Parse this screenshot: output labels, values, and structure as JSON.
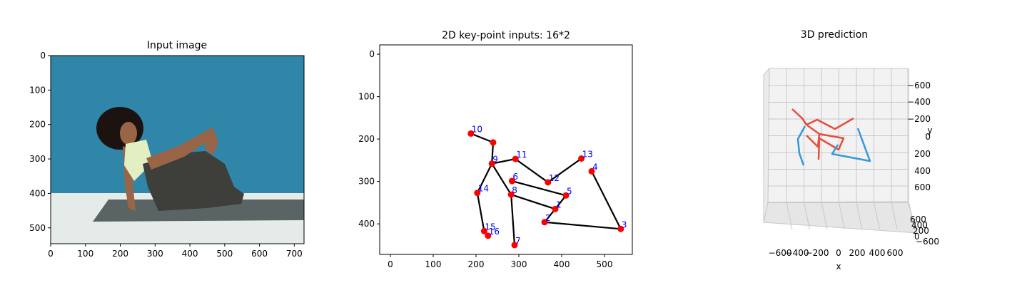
{
  "chart_data": [
    {
      "type": "image",
      "title": "Input image",
      "xlim": [
        0,
        728
      ],
      "ylim": [
        546,
        0
      ],
      "xticks": [
        0,
        100,
        200,
        300,
        400,
        500,
        600,
        700
      ],
      "yticks": [
        0,
        100,
        200,
        300,
        400,
        500
      ],
      "colors": {
        "wall": "#2f86a8",
        "floor": "#e4ebe8",
        "mat": "#5b6464",
        "leggings": "#3e3e3b",
        "top": "#e2efc2",
        "skin": "#9a6547",
        "hair": "#1c1310"
      }
    },
    {
      "type": "scatter",
      "title": "2D key-point inputs: 16*2",
      "xlim": [
        -25,
        565
      ],
      "ylim": [
        472,
        -22
      ],
      "xticks": [
        0,
        100,
        200,
        300,
        400,
        500
      ],
      "yticks": [
        0,
        100,
        200,
        300,
        400
      ],
      "point_color": "#ff0000",
      "bone_color": "#000000",
      "label_color": "#0000ff",
      "points": [
        {
          "label": "",
          "x": 240,
          "y": 208
        },
        {
          "label": "1",
          "x": 385,
          "y": 365
        },
        {
          "label": "2",
          "x": 360,
          "y": 396
        },
        {
          "label": "3",
          "x": 538,
          "y": 412
        },
        {
          "label": "4",
          "x": 470,
          "y": 276
        },
        {
          "label": "5",
          "x": 410,
          "y": 333
        },
        {
          "label": "6",
          "x": 284,
          "y": 299
        },
        {
          "label": "7",
          "x": 290,
          "y": 450
        },
        {
          "label": "8",
          "x": 282,
          "y": 331
        },
        {
          "label": "9",
          "x": 237,
          "y": 258
        },
        {
          "label": "10",
          "x": 188,
          "y": 187
        },
        {
          "label": "11",
          "x": 292,
          "y": 247
        },
        {
          "label": "12",
          "x": 368,
          "y": 302
        },
        {
          "label": "13",
          "x": 446,
          "y": 246
        },
        {
          "label": "14",
          "x": 203,
          "y": 327
        },
        {
          "label": "15",
          "x": 219,
          "y": 417
        },
        {
          "label": "16",
          "x": 228,
          "y": 428
        }
      ],
      "bones": [
        [
          10,
          0
        ],
        [
          0,
          9
        ],
        [
          9,
          11
        ],
        [
          11,
          12
        ],
        [
          12,
          13
        ],
        [
          9,
          8
        ],
        [
          9,
          14
        ],
        [
          14,
          15
        ],
        [
          15,
          16
        ],
        [
          8,
          7
        ],
        [
          8,
          1
        ],
        [
          1,
          2
        ],
        [
          2,
          3
        ],
        [
          3,
          4
        ],
        [
          6,
          5
        ],
        [
          5,
          1
        ]
      ]
    },
    {
      "type": "line3d",
      "title": "3D prediction",
      "xlabel": "x",
      "ylabel": "y",
      "x_ticklabels": [
        "−600",
        "−400",
        "−200",
        "0",
        "200",
        "400",
        "600"
      ],
      "y_ticklabels": [
        "−600",
        "−400",
        "−200",
        "0",
        "200",
        "400",
        "600"
      ],
      "z_ticklabels": [
        "600",
        "400",
        "200",
        "0",
        "−200",
        "−400",
        "−600"
      ],
      "left_color": "#3498db",
      "right_color": "#e74c3c"
    }
  ]
}
